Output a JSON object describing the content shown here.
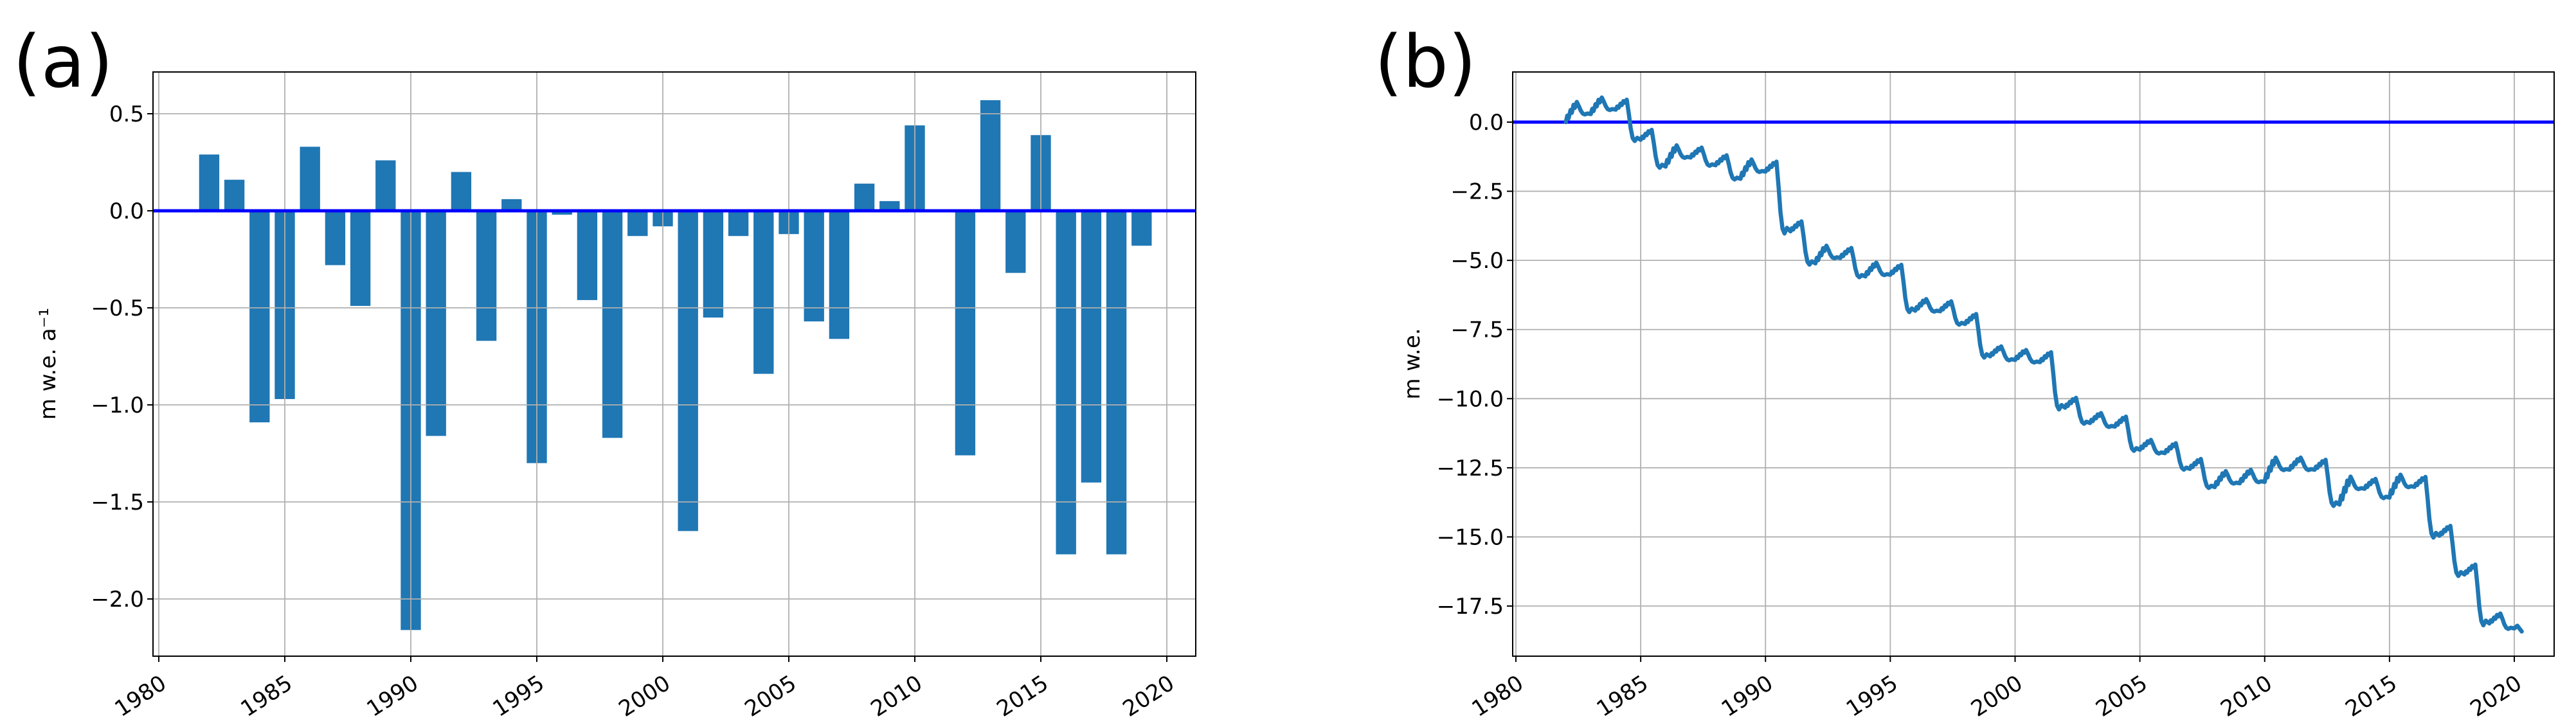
{
  "figure": {
    "background": "#ffffff"
  },
  "colors": {
    "bar": "#1f77b4",
    "line": "#1f77b4",
    "zero_line": "#0000ff",
    "grid": "#b0b0b0",
    "axis": "#000000",
    "text": "#000000"
  },
  "chart_data": [
    {
      "type": "bar",
      "panel": "(a)",
      "title": "",
      "xlabel": "",
      "ylabel": "m w.e. a⁻¹",
      "grid": true,
      "legend": "none",
      "categories": [
        1982,
        1983,
        1984,
        1985,
        1986,
        1987,
        1988,
        1989,
        1990,
        1991,
        1992,
        1993,
        1994,
        1995,
        1996,
        1997,
        1998,
        1999,
        2000,
        2001,
        2002,
        2003,
        2004,
        2005,
        2006,
        2007,
        2008,
        2009,
        2010,
        2011,
        2012,
        2013,
        2014,
        2015,
        2016,
        2017,
        2018,
        2019
      ],
      "values": [
        0.29,
        0.16,
        -1.09,
        -0.97,
        0.33,
        -0.28,
        -0.49,
        0.26,
        -2.16,
        -1.16,
        0.2,
        -0.67,
        0.06,
        -1.3,
        -0.02,
        -0.46,
        -1.17,
        -0.13,
        -0.08,
        -1.65,
        -0.55,
        -0.13,
        -0.84,
        -0.12,
        -0.57,
        -0.66,
        0.14,
        0.05,
        0.44,
        0.0,
        -1.26,
        0.57,
        -0.32,
        0.39,
        -1.77,
        -1.4,
        -1.77,
        -0.18
      ],
      "bar_width_years": 0.8,
      "zero_line": 0.0,
      "x_ticks": [
        1980,
        1985,
        1990,
        1995,
        2000,
        2005,
        2010,
        2015,
        2020
      ],
      "x_tick_labels": [
        "1980",
        "1985",
        "1990",
        "1995",
        "2000",
        "2005",
        "2010",
        "2015",
        "2020"
      ],
      "y_ticks": [
        0.5,
        0.0,
        -0.5,
        -1.0,
        -1.5,
        -2.0
      ],
      "y_tick_labels": [
        "0.5",
        "0.0",
        "−0.5",
        "−1.0",
        "−1.5",
        "−2.0"
      ],
      "xlim": [
        1979.7,
        2021.1
      ],
      "ylim": [
        -2.3,
        0.71
      ]
    },
    {
      "type": "line",
      "panel": "(b)",
      "title": "",
      "xlabel": "",
      "ylabel": "m w.e.",
      "grid": true,
      "legend": "none",
      "start_point": {
        "x": 1982.0,
        "y": 0.0
      },
      "years": [
        1982,
        1983,
        1984,
        1985,
        1986,
        1987,
        1988,
        1989,
        1990,
        1991,
        1992,
        1993,
        1994,
        1995,
        1996,
        1997,
        1998,
        1999,
        2000,
        2001,
        2002,
        2003,
        2004,
        2005,
        2006,
        2007,
        2008,
        2009,
        2010,
        2011,
        2012,
        2013,
        2014,
        2015,
        2016,
        2017,
        2018,
        2019
      ],
      "cumulative_end_of_year": [
        0.29,
        0.45,
        -0.64,
        -1.61,
        -1.28,
        -1.56,
        -2.05,
        -1.79,
        -3.95,
        -5.11,
        -4.91,
        -5.58,
        -5.52,
        -6.82,
        -6.84,
        -7.3,
        -8.47,
        -8.6,
        -8.68,
        -10.33,
        -10.88,
        -11.01,
        -11.85,
        -11.97,
        -12.54,
        -13.2,
        -13.06,
        -13.01,
        -12.57,
        -12.57,
        -13.83,
        -13.26,
        -13.58,
        -13.19,
        -14.96,
        -16.36,
        -18.13,
        -18.31
      ],
      "end_point": {
        "x": 2020.3,
        "y": -18.42
      },
      "seasonal_zigzag": {
        "winter_gain_min": 0.36,
        "winter_gain_offset": 0.44
      },
      "zero_line": 0.0,
      "x_ticks": [
        1980,
        1985,
        1990,
        1995,
        2000,
        2005,
        2010,
        2015,
        2020
      ],
      "x_tick_labels": [
        "1980",
        "1985",
        "1990",
        "1995",
        "2000",
        "2005",
        "2010",
        "2015",
        "2020"
      ],
      "y_ticks": [
        0.0,
        -2.5,
        -5.0,
        -7.5,
        -10.0,
        -12.5,
        -15.0,
        -17.5
      ],
      "y_tick_labels": [
        "0.0",
        "−2.5",
        "−5.0",
        "−7.5",
        "−10.0",
        "−12.5",
        "−15.0",
        "−17.5"
      ],
      "xlim": [
        1979.9,
        2021.6
      ],
      "ylim": [
        -19.31,
        1.81
      ]
    }
  ]
}
